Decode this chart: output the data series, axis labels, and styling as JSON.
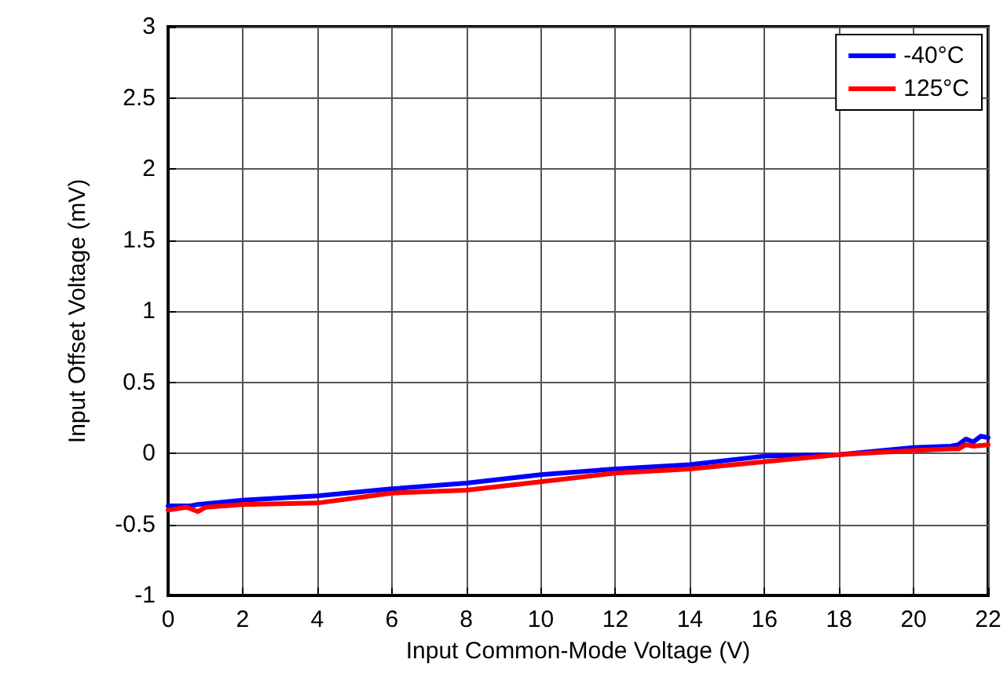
{
  "chart_data": {
    "type": "line",
    "xlabel": "Input Common-Mode Voltage (V)",
    "ylabel": "Input Offset Voltage (mV)",
    "xlim": [
      0,
      22
    ],
    "xticks": [
      0,
      2,
      4,
      6,
      8,
      10,
      12,
      14,
      16,
      18,
      20,
      22
    ],
    "ylim": [
      -1,
      3
    ],
    "yticks": [
      -1,
      -0.5,
      0,
      0.5,
      1,
      1.5,
      2,
      2.5,
      3
    ],
    "grid": true,
    "legend": "top right",
    "marker": "none",
    "line_style": "solid",
    "series": [
      {
        "name": "-40°C",
        "color": "#0000ff",
        "x": [
          0,
          0.6,
          0.8,
          2,
          4,
          6,
          8,
          10,
          12,
          14,
          16,
          18,
          20,
          21,
          21.2,
          21.4,
          21.6,
          21.8,
          22
        ],
        "values": [
          -0.37,
          -0.37,
          -0.36,
          -0.33,
          -0.3,
          -0.25,
          -0.21,
          -0.15,
          -0.11,
          -0.08,
          -0.02,
          -0.01,
          0.04,
          0.05,
          0.06,
          0.1,
          0.08,
          0.12,
          0.11
        ]
      },
      {
        "name": "125°C",
        "color": "#ff0000",
        "x": [
          0,
          0.5,
          0.8,
          1,
          2,
          4,
          6,
          8,
          10,
          12,
          14,
          16,
          18,
          20,
          21,
          21.2,
          21.4,
          21.6,
          22
        ],
        "values": [
          -0.4,
          -0.38,
          -0.41,
          -0.38,
          -0.36,
          -0.35,
          -0.28,
          -0.26,
          -0.2,
          -0.14,
          -0.11,
          -0.06,
          -0.01,
          0.02,
          0.03,
          0.03,
          0.06,
          0.05,
          0.06
        ]
      }
    ]
  }
}
